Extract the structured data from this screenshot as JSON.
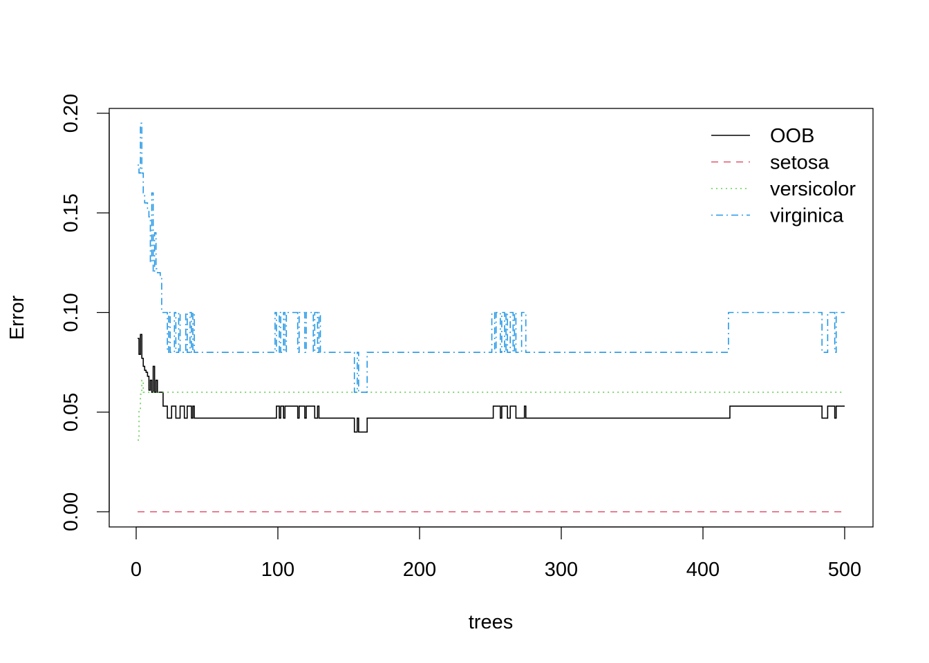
{
  "chart_data": {
    "type": "line",
    "title": "",
    "xlabel": "trees",
    "ylabel": "Error",
    "xlim": [
      0,
      500
    ],
    "ylim": [
      0,
      0.2
    ],
    "x_ticks": [
      {
        "value": 0,
        "label": "0"
      },
      {
        "value": 100,
        "label": "100"
      },
      {
        "value": 200,
        "label": "200"
      },
      {
        "value": 300,
        "label": "300"
      },
      {
        "value": 400,
        "label": "400"
      },
      {
        "value": 500,
        "label": "500"
      }
    ],
    "y_ticks": [
      {
        "value": 0,
        "label": "0.00"
      },
      {
        "value": 0.05,
        "label": "0.05"
      },
      {
        "value": 0.1,
        "label": "0.10"
      },
      {
        "value": 0.15,
        "label": "0.15"
      },
      {
        "value": 0.2,
        "label": "0.20"
      }
    ],
    "grid": false,
    "legend_position": "top-right",
    "series": [
      {
        "name": "OOB",
        "color": "#000000",
        "dash": "solid",
        "points": [
          [
            1,
            0.087
          ],
          [
            2,
            0.079
          ],
          [
            3,
            0.089
          ],
          [
            4,
            0.077
          ],
          [
            5,
            0.073
          ],
          [
            6,
            0.071
          ],
          [
            7,
            0.07
          ],
          [
            8,
            0.068
          ],
          [
            9,
            0.061
          ],
          [
            10,
            0.066
          ],
          [
            11,
            0.06
          ],
          [
            12,
            0.073
          ],
          [
            13,
            0.06
          ],
          [
            14,
            0.066
          ],
          [
            15,
            0.06
          ],
          [
            17,
            0.06
          ],
          [
            18,
            0.06
          ],
          [
            19,
            0.053
          ],
          [
            21,
            0.053
          ],
          [
            22,
            0.047
          ],
          [
            24,
            0.047
          ],
          [
            25,
            0.053
          ],
          [
            27,
            0.053
          ],
          [
            28,
            0.047
          ],
          [
            30,
            0.047
          ],
          [
            31,
            0.053
          ],
          [
            33,
            0.053
          ],
          [
            34,
            0.047
          ],
          [
            35,
            0.047
          ],
          [
            36,
            0.053
          ],
          [
            38,
            0.053
          ],
          [
            39,
            0.047
          ],
          [
            40,
            0.053
          ],
          [
            41,
            0.047
          ],
          [
            98,
            0.047
          ],
          [
            99,
            0.053
          ],
          [
            101,
            0.047
          ],
          [
            102,
            0.053
          ],
          [
            104,
            0.047
          ],
          [
            105,
            0.053
          ],
          [
            113,
            0.053
          ],
          [
            114,
            0.047
          ],
          [
            115,
            0.053
          ],
          [
            119,
            0.047
          ],
          [
            120,
            0.053
          ],
          [
            125,
            0.053
          ],
          [
            126,
            0.047
          ],
          [
            128,
            0.053
          ],
          [
            129,
            0.047
          ],
          [
            153,
            0.047
          ],
          [
            154,
            0.04
          ],
          [
            156,
            0.047
          ],
          [
            157,
            0.04
          ],
          [
            162,
            0.04
          ],
          [
            163,
            0.047
          ],
          [
            251,
            0.047
          ],
          [
            252,
            0.053
          ],
          [
            256,
            0.053
          ],
          [
            257,
            0.047
          ],
          [
            258,
            0.053
          ],
          [
            261,
            0.053
          ],
          [
            262,
            0.047
          ],
          [
            264,
            0.053
          ],
          [
            267,
            0.053
          ],
          [
            268,
            0.047
          ],
          [
            271,
            0.047
          ],
          [
            274,
            0.053
          ],
          [
            275,
            0.047
          ],
          [
            418,
            0.047
          ],
          [
            419,
            0.053
          ],
          [
            483,
            0.053
          ],
          [
            484,
            0.047
          ],
          [
            487,
            0.047
          ],
          [
            488,
            0.053
          ],
          [
            492,
            0.053
          ],
          [
            493,
            0.047
          ],
          [
            494,
            0.053
          ],
          [
            500,
            0.053
          ]
        ]
      },
      {
        "name": "setosa",
        "color": "#DF536B",
        "dash": "dashed",
        "points": [
          [
            1,
            0
          ],
          [
            500,
            0
          ]
        ]
      },
      {
        "name": "versicolor",
        "color": "#61D04F",
        "dash": "dotted",
        "points": [
          [
            1,
            0.036
          ],
          [
            2,
            0.051
          ],
          [
            3,
            0.059
          ],
          [
            4,
            0.066
          ],
          [
            5,
            0.06
          ],
          [
            500,
            0.06
          ]
        ]
      },
      {
        "name": "virginica",
        "color": "#2297E6",
        "dash": "dotdash",
        "points": [
          [
            1,
            0.174
          ],
          [
            2,
            0.17
          ],
          [
            3,
            0.195
          ],
          [
            4,
            0.17
          ],
          [
            5,
            0.16
          ],
          [
            6,
            0.155
          ],
          [
            8,
            0.152
          ],
          [
            9,
            0.148
          ],
          [
            10,
            0.125
          ],
          [
            11,
            0.16
          ],
          [
            12,
            0.12
          ],
          [
            13,
            0.14
          ],
          [
            14,
            0.122
          ],
          [
            15,
            0.12
          ],
          [
            17,
            0.118
          ],
          [
            18,
            0.1
          ],
          [
            21,
            0.1
          ],
          [
            22,
            0.08
          ],
          [
            23,
            0.1
          ],
          [
            24,
            0.08
          ],
          [
            26,
            0.08
          ],
          [
            27,
            0.1
          ],
          [
            28,
            0.08
          ],
          [
            30,
            0.1
          ],
          [
            31,
            0.08
          ],
          [
            34,
            0.08
          ],
          [
            35,
            0.1
          ],
          [
            36,
            0.08
          ],
          [
            38,
            0.1
          ],
          [
            39,
            0.08
          ],
          [
            40,
            0.1
          ],
          [
            41,
            0.08
          ],
          [
            97,
            0.08
          ],
          [
            98,
            0.1
          ],
          [
            99,
            0.08
          ],
          [
            101,
            0.1
          ],
          [
            102,
            0.08
          ],
          [
            104,
            0.1
          ],
          [
            105,
            0.08
          ],
          [
            106,
            0.1
          ],
          [
            113,
            0.1
          ],
          [
            114,
            0.08
          ],
          [
            115,
            0.1
          ],
          [
            118,
            0.1
          ],
          [
            119,
            0.08
          ],
          [
            120,
            0.1
          ],
          [
            124,
            0.1
          ],
          [
            125,
            0.08
          ],
          [
            126,
            0.1
          ],
          [
            128,
            0.08
          ],
          [
            129,
            0.1
          ],
          [
            130,
            0.08
          ],
          [
            153,
            0.08
          ],
          [
            154,
            0.06
          ],
          [
            156,
            0.08
          ],
          [
            157,
            0.06
          ],
          [
            162,
            0.06
          ],
          [
            163,
            0.08
          ],
          [
            250,
            0.08
          ],
          [
            251,
            0.1
          ],
          [
            253,
            0.08
          ],
          [
            254,
            0.1
          ],
          [
            256,
            0.1
          ],
          [
            257,
            0.08
          ],
          [
            258,
            0.1
          ],
          [
            260,
            0.08
          ],
          [
            261,
            0.1
          ],
          [
            262,
            0.08
          ],
          [
            264,
            0.1
          ],
          [
            266,
            0.08
          ],
          [
            267,
            0.1
          ],
          [
            268,
            0.08
          ],
          [
            271,
            0.08
          ],
          [
            272,
            0.1
          ],
          [
            274,
            0.1
          ],
          [
            275,
            0.08
          ],
          [
            417,
            0.08
          ],
          [
            418,
            0.1
          ],
          [
            483,
            0.1
          ],
          [
            484,
            0.08
          ],
          [
            487,
            0.08
          ],
          [
            488,
            0.1
          ],
          [
            492,
            0.1
          ],
          [
            493,
            0.08
          ],
          [
            494,
            0.1
          ],
          [
            500,
            0.1
          ]
        ]
      }
    ]
  }
}
